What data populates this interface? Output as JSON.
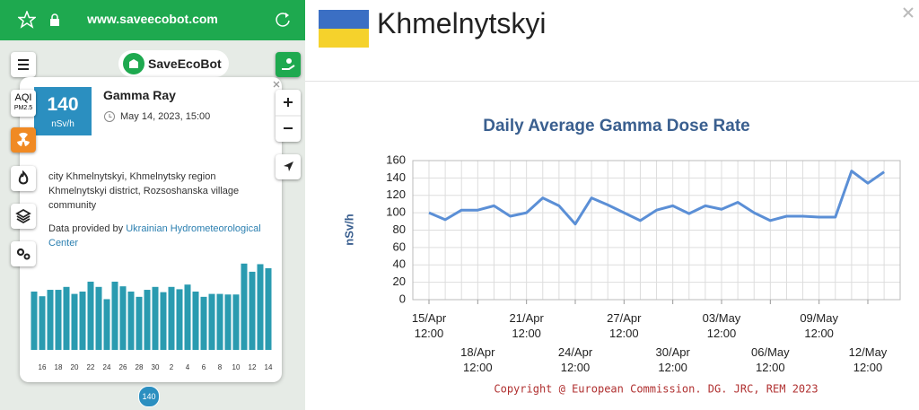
{
  "browser": {
    "url": "www.saveecobot.com"
  },
  "app": {
    "logo": "SaveEcoBot",
    "aqi_label": "AQI",
    "aqi_sub": "PM2.5"
  },
  "popup": {
    "value": 140,
    "unit": "nSv/h",
    "title": "Gamma Ray",
    "datetime": "May 14, 2023, 15:00",
    "location": "city Khmelnytskyi, Khmelnytsky region Khmelnytskyi district, Rozsoshanska village community",
    "source_prefix": "Data provided by",
    "source_link": "Ukrainian Hydrometeorological Center"
  },
  "map_marker": 140,
  "panel": {
    "title": "Khmelnytskyi"
  },
  "chart_data": [
    {
      "type": "bar",
      "color": "#2a9bb0",
      "categories": [
        null,
        "16",
        null,
        "18",
        null,
        "20",
        null,
        "22",
        null,
        "24",
        null,
        "26",
        null,
        "28",
        null,
        "30",
        null,
        "2",
        null,
        "4",
        null,
        "6",
        null,
        "8",
        null,
        "10",
        null,
        "12",
        null,
        "14"
      ],
      "values": [
        100,
        92,
        103,
        103,
        108,
        96,
        100,
        117,
        108,
        87,
        117,
        109,
        100,
        91,
        103,
        108,
        99,
        108,
        104,
        112,
        100,
        91,
        96,
        96,
        95,
        95,
        148,
        134,
        147,
        140
      ]
    },
    {
      "type": "line",
      "title": "Daily Average Gamma Dose Rate",
      "y_label": "nSv/h",
      "color": "#5b8fd6",
      "categories": [
        "15/Apr 12:00",
        null,
        null,
        "18/Apr 12:00",
        null,
        null,
        "21/Apr 12:00",
        null,
        null,
        "24/Apr 12:00",
        null,
        null,
        "27/Apr 12:00",
        null,
        null,
        "30/Apr 12:00",
        null,
        null,
        "03/May 12:00",
        null,
        null,
        "06/May 12:00",
        null,
        null,
        "09/May 12:00",
        null,
        null,
        "12/May 12:00",
        null
      ],
      "values": [
        100,
        92,
        103,
        103,
        108,
        96,
        100,
        117,
        108,
        87,
        117,
        109,
        100,
        91,
        103,
        108,
        99,
        108,
        104,
        112,
        100,
        91,
        96,
        96,
        95,
        95,
        148,
        134,
        147
      ],
      "ylim": [
        0,
        160
      ],
      "yticks": [
        0,
        20,
        40,
        60,
        80,
        100,
        120,
        140,
        160
      ],
      "grid": true,
      "copyright": "Copyright @ European Commission. DG. JRC, REM 2023"
    }
  ]
}
